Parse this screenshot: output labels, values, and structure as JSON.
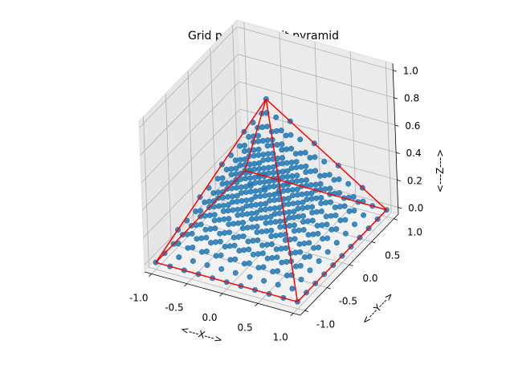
{
  "chart_data": {
    "type": "scatter3d",
    "title": "Grid points in unit pyramid",
    "xlabel": "<---X--->",
    "ylabel": "<---Y--->",
    "zlabel": "<---Z--->",
    "xlim": [
      -1.1,
      1.1
    ],
    "ylim": [
      -1.1,
      1.1
    ],
    "zlim": [
      -0.05,
      1.05
    ],
    "x_ticks": [
      "-1.0",
      "-0.5",
      "0.0",
      "0.5",
      "1.0"
    ],
    "y_ticks": [
      "-1.0",
      "-0.5",
      "0.0",
      "0.5",
      "1.0"
    ],
    "z_ticks": [
      "0.0",
      "0.2",
      "0.4",
      "0.6",
      "0.8",
      "1.0"
    ],
    "grid": true,
    "pyramid": {
      "base": [
        [
          -1,
          -1,
          0
        ],
        [
          1,
          -1,
          0
        ],
        [
          1,
          1,
          0
        ],
        [
          -1,
          1,
          0
        ]
      ],
      "apex": [
        0,
        0,
        1
      ],
      "edge_color": "#ff0000"
    },
    "grid_points": {
      "levels": 11,
      "description_rule": "z = k/10 for k = 0..10; x,y on a uniform 0.2-spaced grid with |x|,|y| <= 1 - z",
      "count": 506,
      "marker_color": "#1f77b4"
    }
  }
}
